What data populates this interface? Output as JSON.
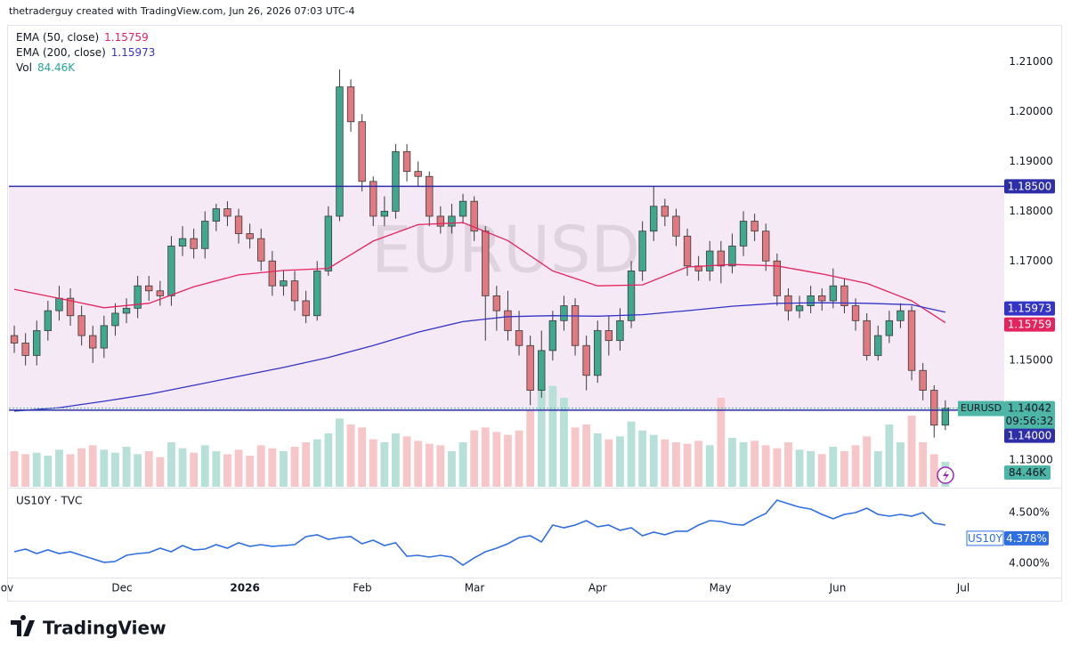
{
  "header": "thetraderguy created with TradingView.com, Jun 26, 2026 07:03 UTC-4",
  "logo": "TradingView",
  "chart_data": [
    {
      "type": "candlestick",
      "symbol": "EURUSD",
      "countdown": "09:56:32",
      "up_color": "#3fa88f",
      "down_color": "#e07a80",
      "open": [
        1.155,
        1.1535,
        1.151,
        1.156,
        1.16,
        1.1625,
        1.159,
        1.155,
        1.1525,
        1.157,
        1.1595,
        1.1605,
        1.165,
        1.164,
        1.163,
        1.173,
        1.1745,
        1.1725,
        1.178,
        1.1805,
        1.179,
        1.1755,
        1.1745,
        1.17,
        1.165,
        1.166,
        1.162,
        1.159,
        1.168,
        1.179,
        1.205,
        1.198,
        1.186,
        1.179,
        1.18,
        1.192,
        1.188,
        1.187,
        1.179,
        1.177,
        1.179,
        1.182,
        1.176,
        1.163,
        1.16,
        1.156,
        1.153,
        1.144,
        1.152,
        1.158,
        1.161,
        1.153,
        1.147,
        1.156,
        1.154,
        1.158,
        1.168,
        1.176,
        1.181,
        1.179,
        1.175,
        1.169,
        1.168,
        1.172,
        1.169,
        1.173,
        1.178,
        1.176,
        1.17,
        1.163,
        1.16,
        1.161,
        1.163,
        1.162,
        1.165,
        1.161,
        1.158,
        1.151,
        1.155,
        1.158,
        1.16,
        1.148,
        1.144,
        1.137
      ],
      "high": [
        1.157,
        1.1555,
        1.158,
        1.162,
        1.165,
        1.1645,
        1.161,
        1.157,
        1.159,
        1.1615,
        1.1625,
        1.167,
        1.167,
        1.166,
        1.175,
        1.177,
        1.1765,
        1.18,
        1.1815,
        1.182,
        1.1805,
        1.1775,
        1.1765,
        1.172,
        1.168,
        1.168,
        1.164,
        1.17,
        1.181,
        1.2085,
        1.2065,
        1.1995,
        1.187,
        1.183,
        1.1935,
        1.1935,
        1.19,
        1.188,
        1.181,
        1.1815,
        1.1835,
        1.183,
        1.177,
        1.165,
        1.164,
        1.16,
        1.155,
        1.156,
        1.16,
        1.163,
        1.1625,
        1.155,
        1.158,
        1.159,
        1.1605,
        1.17,
        1.178,
        1.185,
        1.1825,
        1.1805,
        1.1765,
        1.171,
        1.174,
        1.174,
        1.1755,
        1.18,
        1.1795,
        1.1775,
        1.1715,
        1.1645,
        1.163,
        1.165,
        1.1645,
        1.1685,
        1.1665,
        1.1625,
        1.1595,
        1.157,
        1.16,
        1.1615,
        1.161,
        1.1495,
        1.145,
        1.142
      ],
      "low": [
        1.1515,
        1.149,
        1.149,
        1.154,
        1.158,
        1.157,
        1.153,
        1.1495,
        1.1505,
        1.155,
        1.1575,
        1.1585,
        1.162,
        1.161,
        1.161,
        1.171,
        1.1705,
        1.1705,
        1.176,
        1.177,
        1.1735,
        1.1725,
        1.168,
        1.163,
        1.163,
        1.16,
        1.1575,
        1.158,
        1.167,
        1.178,
        1.196,
        1.184,
        1.177,
        1.177,
        1.1785,
        1.186,
        1.185,
        1.177,
        1.1755,
        1.1755,
        1.1775,
        1.174,
        1.154,
        1.156,
        1.154,
        1.151,
        1.141,
        1.1425,
        1.15,
        1.156,
        1.151,
        1.144,
        1.1455,
        1.151,
        1.152,
        1.1565,
        1.166,
        1.174,
        1.177,
        1.173,
        1.167,
        1.166,
        1.166,
        1.1655,
        1.1675,
        1.171,
        1.174,
        1.168,
        1.161,
        1.158,
        1.1585,
        1.1595,
        1.16,
        1.1605,
        1.1595,
        1.156,
        1.15,
        1.15,
        1.1535,
        1.1565,
        1.146,
        1.142,
        1.1345,
        1.136
      ],
      "close": [
        1.1535,
        1.151,
        1.156,
        1.16,
        1.1625,
        1.159,
        1.155,
        1.1525,
        1.157,
        1.1595,
        1.1605,
        1.165,
        1.164,
        1.163,
        1.173,
        1.1745,
        1.1725,
        1.178,
        1.1805,
        1.179,
        1.1755,
        1.1745,
        1.17,
        1.165,
        1.166,
        1.162,
        1.159,
        1.168,
        1.179,
        1.205,
        1.198,
        1.186,
        1.179,
        1.18,
        1.192,
        1.188,
        1.187,
        1.179,
        1.177,
        1.179,
        1.182,
        1.176,
        1.163,
        1.16,
        1.156,
        1.153,
        1.144,
        1.152,
        1.158,
        1.161,
        1.153,
        1.147,
        1.156,
        1.154,
        1.158,
        1.168,
        1.176,
        1.181,
        1.179,
        1.175,
        1.169,
        1.168,
        1.172,
        1.169,
        1.173,
        1.178,
        1.176,
        1.17,
        1.163,
        1.16,
        1.161,
        1.163,
        1.162,
        1.165,
        1.161,
        1.158,
        1.151,
        1.155,
        1.158,
        1.16,
        1.148,
        1.144,
        1.137,
        1.14042
      ],
      "volume": {
        "name": "Vol",
        "up_color": "#b7e0d8",
        "down_color": "#f7c6c8",
        "ylim": [
          0,
          600000
        ],
        "last_label": "84.46K",
        "values": [
          120000,
          110000,
          115000,
          105000,
          125000,
          110000,
          130000,
          140000,
          125000,
          115000,
          135000,
          110000,
          120000,
          100000,
          150000,
          130000,
          115000,
          140000,
          120000,
          110000,
          125000,
          105000,
          140000,
          130000,
          120000,
          135000,
          150000,
          160000,
          180000,
          230000,
          210000,
          200000,
          160000,
          150000,
          180000,
          170000,
          155000,
          145000,
          140000,
          120000,
          150000,
          190000,
          200000,
          185000,
          175000,
          190000,
          260000,
          370000,
          340000,
          300000,
          200000,
          210000,
          180000,
          160000,
          170000,
          220000,
          190000,
          175000,
          160000,
          150000,
          145000,
          155000,
          140000,
          300000,
          165000,
          150000,
          155000,
          140000,
          130000,
          150000,
          125000,
          120000,
          110000,
          135000,
          120000,
          140000,
          170000,
          120000,
          210000,
          150000,
          240000,
          150000,
          110000,
          84460
        ]
      },
      "series": [
        {
          "name": "EMA (50, close)",
          "color": "#e3245d",
          "x": [
            0,
            4,
            8,
            12,
            16,
            20,
            24,
            28,
            32,
            36,
            40,
            44,
            48,
            52,
            56,
            60,
            64,
            68,
            72,
            76,
            80,
            83
          ],
          "values": [
            1.1643,
            1.1625,
            1.1606,
            1.1615,
            1.1648,
            1.1672,
            1.1681,
            1.1685,
            1.174,
            1.1773,
            1.1777,
            1.1741,
            1.168,
            1.165,
            1.1652,
            1.1688,
            1.1693,
            1.169,
            1.1674,
            1.1655,
            1.162,
            1.15759
          ]
        },
        {
          "name": "EMA (200, close)",
          "color": "#3434c6",
          "x": [
            0,
            4,
            8,
            12,
            16,
            20,
            24,
            28,
            32,
            36,
            40,
            44,
            48,
            52,
            56,
            60,
            64,
            68,
            72,
            76,
            80,
            83
          ],
          "values": [
            1.1398,
            1.1405,
            1.1418,
            1.1432,
            1.145,
            1.1468,
            1.1486,
            1.1506,
            1.153,
            1.1557,
            1.1578,
            1.1588,
            1.159,
            1.1589,
            1.1592,
            1.16,
            1.1609,
            1.1615,
            1.1616,
            1.1615,
            1.1612,
            1.15973
          ]
        }
      ],
      "levels": [
        {
          "value": 1.185,
          "label": "1.18500"
        },
        {
          "value": 1.14,
          "label": "1.14000"
        }
      ],
      "level_color": "#2e2ea8",
      "zone_color": "#f5e9f5",
      "price_color": "#4db6a6",
      "xlim": [
        -0.48,
        88.25
      ],
      "ylim": [
        1.1246,
        1.2171
      ],
      "yticks": [
        {
          "value": 1.21,
          "label": "1.21000"
        },
        {
          "value": 1.2,
          "label": "1.20000"
        },
        {
          "value": 1.19,
          "label": "1.19000"
        },
        {
          "value": 1.18,
          "label": "1.18000"
        },
        {
          "value": 1.17,
          "label": "1.17000"
        },
        {
          "value": 1.15,
          "label": "1.15000"
        },
        {
          "value": 1.13,
          "label": "1.13000"
        }
      ],
      "xticks": [
        {
          "value": -1,
          "label": "Nov"
        },
        {
          "value": 9.6,
          "label": "Dec"
        },
        {
          "value": 20.56,
          "label": "2026"
        },
        {
          "value": 31.03,
          "label": "Feb"
        },
        {
          "value": 41.03,
          "label": "Mar"
        },
        {
          "value": 52,
          "label": "Apr"
        },
        {
          "value": 62.94,
          "label": "May"
        },
        {
          "value": 73.41,
          "label": "Jun"
        },
        {
          "value": 84.6,
          "label": "Jul"
        }
      ]
    },
    {
      "type": "line",
      "title": "US10Y · TVC",
      "series": [
        {
          "name": "US10Y",
          "color": "#2f6fe0",
          "last_label": "4.378%",
          "values": [
            4.114,
            4.14,
            4.096,
            4.132,
            4.096,
            4.114,
            4.079,
            4.044,
            4.009,
            4.018,
            4.079,
            4.096,
            4.105,
            4.149,
            4.114,
            4.175,
            4.132,
            4.14,
            4.184,
            4.149,
            4.202,
            4.167,
            4.184,
            4.167,
            4.175,
            4.184,
            4.263,
            4.281,
            4.237,
            4.254,
            4.263,
            4.193,
            4.228,
            4.175,
            4.202,
            4.07,
            4.079,
            4.061,
            4.079,
            4.061,
            3.982,
            4.053,
            4.114,
            4.149,
            4.193,
            4.254,
            4.272,
            4.211,
            4.377,
            4.351,
            4.377,
            4.421,
            4.36,
            4.377,
            4.325,
            4.351,
            4.272,
            4.307,
            4.281,
            4.316,
            4.316,
            4.377,
            4.421,
            4.412,
            4.386,
            4.377,
            4.439,
            4.491,
            4.623,
            4.588,
            4.553,
            4.535,
            4.482,
            4.439,
            4.482,
            4.5,
            4.544,
            4.482,
            4.465,
            4.482,
            4.465,
            4.5,
            4.395,
            4.378
          ]
        }
      ],
      "xlim": [
        -0.48,
        88.25
      ],
      "ylim": [
        3.868,
        4.728
      ],
      "yticks": [
        {
          "value": 4.5,
          "label": "4.500%"
        },
        {
          "value": 4,
          "label": "4.000%"
        }
      ]
    }
  ]
}
